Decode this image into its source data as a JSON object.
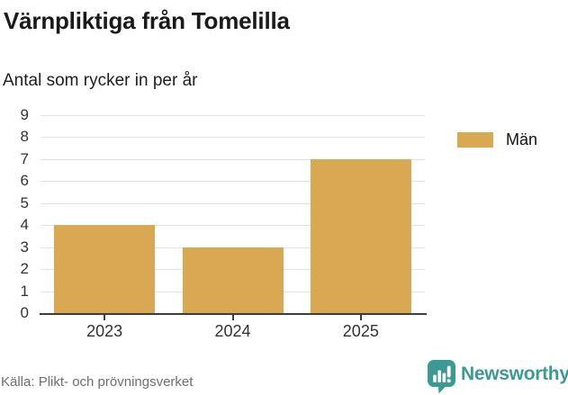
{
  "title": "Värnpliktiga från Tomelilla",
  "subtitle": "Antal som rycker in per år",
  "source": "Källa: Plikt- och prövningsverket",
  "brand": {
    "name": "Newsworthy",
    "color": "#3b9b94"
  },
  "legend": {
    "label": "Män",
    "color": "#d8a852"
  },
  "colors": {
    "bar": "#d8a852",
    "gridline": "#e3e3e3",
    "axis": "#3d3d3d",
    "tick_text": "#333333",
    "title_text": "#1a1a1a",
    "source_text": "#6e6e73",
    "brand_teal": "#3b9b94"
  },
  "chart_data": {
    "type": "bar",
    "categories": [
      "2023",
      "2024",
      "2025"
    ],
    "series": [
      {
        "name": "Män",
        "values": [
          4,
          3,
          7
        ]
      }
    ],
    "title": "Värnpliktiga från Tomelilla",
    "subtitle": "Antal som rycker in per år",
    "xlabel": "",
    "ylabel": "",
    "ylim": [
      0,
      9
    ],
    "yticks": [
      0,
      1,
      2,
      3,
      4,
      5,
      6,
      7,
      8,
      9
    ],
    "grid": true,
    "legend_position": "right",
    "bar_color": "#d8a852",
    "source": "Källa: Plikt- och prövningsverket"
  }
}
